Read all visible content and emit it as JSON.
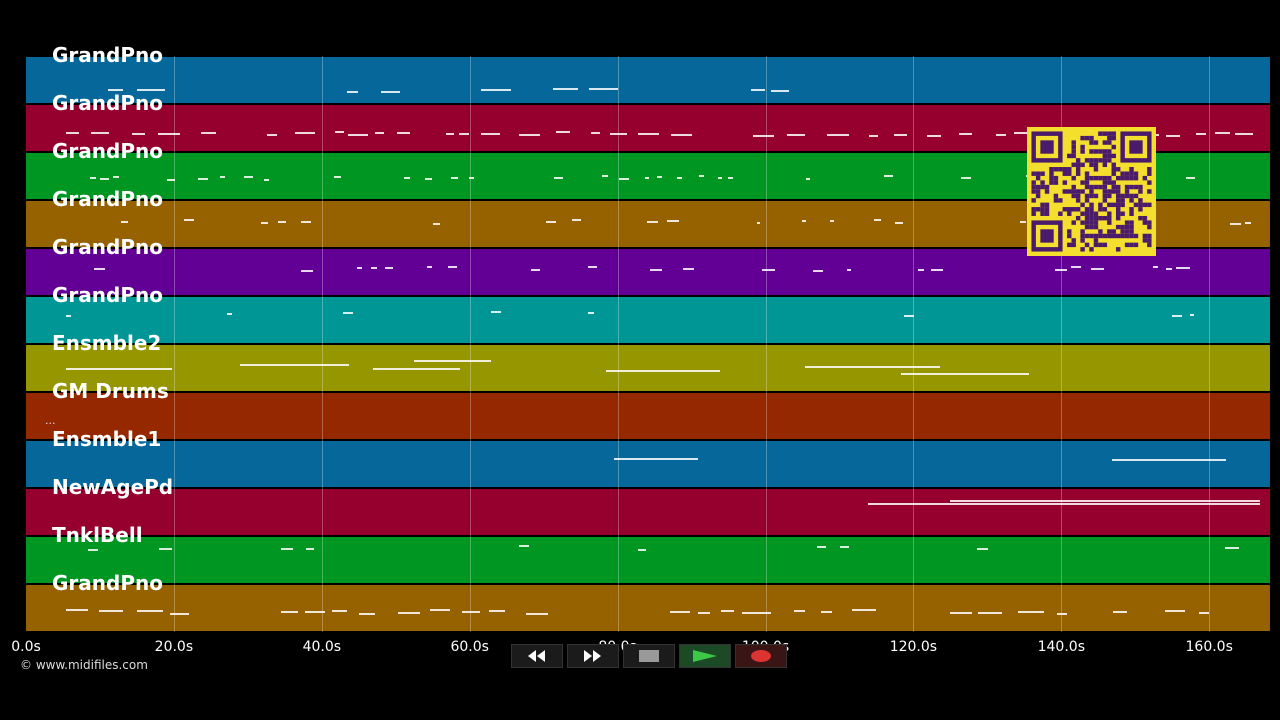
{
  "tracks": [
    {
      "name": "GrandPno",
      "color": "#05679a"
    },
    {
      "name": "GrandPno",
      "color": "#96002e"
    },
    {
      "name": "GrandPno",
      "color": "#009622"
    },
    {
      "name": "GrandPno",
      "color": "#966200"
    },
    {
      "name": "GrandPno",
      "color": "#620096"
    },
    {
      "name": "GrandPno",
      "color": "#009696"
    },
    {
      "name": "Ensmble2",
      "color": "#969600"
    },
    {
      "name": "GM Drums",
      "color": "#962800"
    },
    {
      "name": "Ensmble1",
      "color": "#05679a"
    },
    {
      "name": "NewAgePd",
      "color": "#96002e"
    },
    {
      "name": "TnklBell",
      "color": "#009622"
    },
    {
      "name": "GrandPno",
      "color": "#966200"
    }
  ],
  "timeline": {
    "ticks": [
      "0.0s",
      "20.0s",
      "40.0s",
      "60.0s",
      "80.0s",
      "100.0s",
      "120.0s",
      "140.0s",
      "160.0s"
    ],
    "max_seconds": 168.3
  },
  "ellipsis": "...",
  "copyright": "© www.midifiles.com",
  "transport": {
    "rewind": "rewind-icon",
    "fast_forward": "fast-forward-icon",
    "stop": "stop-icon",
    "play": "play-icon",
    "record": "record-icon"
  },
  "qr_code": {
    "color": "#f5df2e",
    "module_color": "#4a1a6b"
  }
}
